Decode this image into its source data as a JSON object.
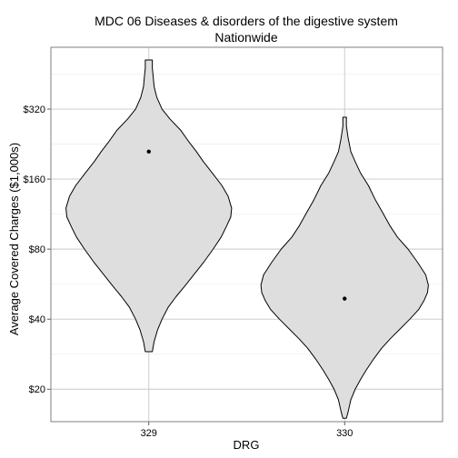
{
  "chart_data": {
    "type": "violin",
    "title": "MDC 06 Diseases & disorders of the digestive system",
    "subtitle": "Nationwide",
    "xlabel": "DRG",
    "ylabel": "Average Covered Charges ($1,000s)",
    "y_scale": "log",
    "ylim": [
      14.5,
      590
    ],
    "y_ticks": [
      20,
      40,
      80,
      160,
      320
    ],
    "y_tick_labels": [
      "$20",
      "$40",
      "$80",
      "$160",
      "$320"
    ],
    "categories": [
      "329",
      "330"
    ],
    "grid": true,
    "colors": {
      "fill": "#dedede",
      "outline": "#000000",
      "grid_major": "#c8c8c8",
      "grid_minor": "#efefef",
      "panel_border": "#7f7f7f"
    },
    "violins": [
      {
        "category": "329",
        "y_min": 29,
        "y_max": 520,
        "marker": 210,
        "profile": [
          [
            29,
            0.04
          ],
          [
            32,
            0.06
          ],
          [
            36,
            0.1
          ],
          [
            40,
            0.15
          ],
          [
            45,
            0.22
          ],
          [
            50,
            0.31
          ],
          [
            55,
            0.4
          ],
          [
            60,
            0.48
          ],
          [
            70,
            0.62
          ],
          [
            80,
            0.73
          ],
          [
            90,
            0.82
          ],
          [
            100,
            0.88
          ],
          [
            110,
            0.93
          ],
          [
            120,
            0.94
          ],
          [
            135,
            0.9
          ],
          [
            150,
            0.83
          ],
          [
            170,
            0.72
          ],
          [
            190,
            0.62
          ],
          [
            210,
            0.54
          ],
          [
            230,
            0.46
          ],
          [
            260,
            0.36
          ],
          [
            290,
            0.24
          ],
          [
            320,
            0.15
          ],
          [
            360,
            0.09
          ],
          [
            400,
            0.06
          ],
          [
            440,
            0.05
          ],
          [
            480,
            0.04
          ],
          [
            520,
            0.04
          ]
        ]
      },
      {
        "category": "330",
        "y_min": 15,
        "y_max": 295,
        "marker": 49,
        "profile": [
          [
            15,
            0.02
          ],
          [
            16,
            0.04
          ],
          [
            18,
            0.07
          ],
          [
            20,
            0.12
          ],
          [
            22,
            0.18
          ],
          [
            24,
            0.24
          ],
          [
            27,
            0.33
          ],
          [
            30,
            0.42
          ],
          [
            33,
            0.52
          ],
          [
            36,
            0.62
          ],
          [
            40,
            0.74
          ],
          [
            44,
            0.84
          ],
          [
            48,
            0.9
          ],
          [
            52,
            0.94
          ],
          [
            56,
            0.95
          ],
          [
            62,
            0.92
          ],
          [
            70,
            0.83
          ],
          [
            80,
            0.72
          ],
          [
            90,
            0.6
          ],
          [
            100,
            0.52
          ],
          [
            115,
            0.43
          ],
          [
            130,
            0.35
          ],
          [
            150,
            0.27
          ],
          [
            170,
            0.18
          ],
          [
            190,
            0.12
          ],
          [
            210,
            0.07
          ],
          [
            240,
            0.04
          ],
          [
            270,
            0.02
          ],
          [
            295,
            0.02
          ]
        ]
      }
    ]
  }
}
